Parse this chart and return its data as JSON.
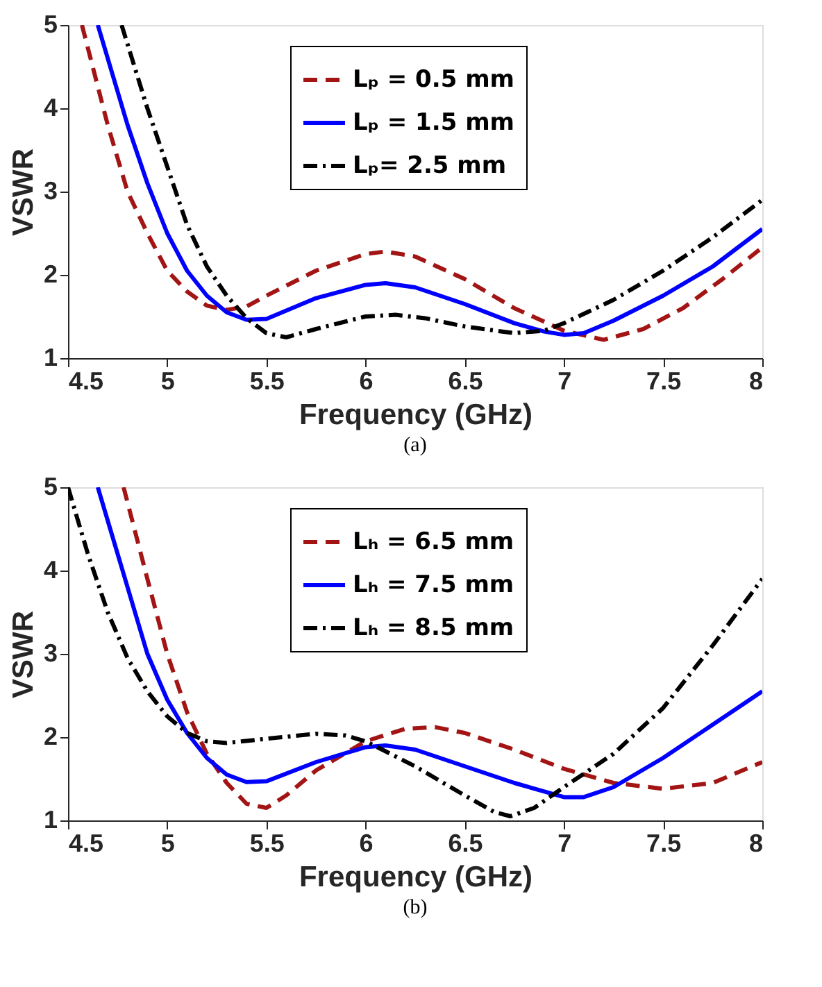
{
  "chart_data": [
    {
      "type": "line",
      "xlabel": "Frequency (GHz)",
      "ylabel": "VSWR",
      "annotations": [
        "(a)"
      ],
      "xlim": [
        4.5,
        8
      ],
      "xticks": [
        4.5,
        5,
        5.5,
        6,
        6.5,
        7,
        7.5,
        8
      ],
      "ylim": [
        1,
        5
      ],
      "yticks": [
        1,
        2,
        3,
        4,
        5
      ],
      "grid": false,
      "legend": "top",
      "marker": "none",
      "series": [
        {
          "name": "Lₚ = 0.5 mm",
          "color": "#a31515",
          "line_style": "dashed",
          "x": [
            4.57,
            4.7,
            4.8,
            4.9,
            5.0,
            5.1,
            5.2,
            5.3,
            5.4,
            5.5,
            5.75,
            6.0,
            6.1,
            6.25,
            6.5,
            6.75,
            7.0,
            7.2,
            7.4,
            7.6,
            7.8,
            8.0
          ],
          "values": [
            5,
            3.8,
            3.0,
            2.5,
            2.05,
            1.8,
            1.63,
            1.58,
            1.62,
            1.75,
            2.05,
            2.25,
            2.28,
            2.22,
            1.95,
            1.6,
            1.33,
            1.22,
            1.35,
            1.6,
            1.95,
            2.33
          ]
        },
        {
          "name": "Lₚ = 1.5 mm",
          "color": "#0000ff",
          "line_style": "solid",
          "x": [
            4.65,
            4.8,
            4.9,
            5.0,
            5.1,
            5.2,
            5.3,
            5.4,
            5.5,
            5.75,
            6.0,
            6.1,
            6.25,
            6.5,
            6.75,
            6.9,
            7.0,
            7.1,
            7.25,
            7.5,
            7.75,
            8.0
          ],
          "values": [
            5,
            3.8,
            3.1,
            2.5,
            2.05,
            1.75,
            1.55,
            1.46,
            1.47,
            1.72,
            1.88,
            1.9,
            1.85,
            1.65,
            1.42,
            1.32,
            1.28,
            1.3,
            1.45,
            1.75,
            2.1,
            2.55
          ]
        },
        {
          "name": "Lₚ= 2.5 mm",
          "color": "#000000",
          "line_style": "dashdot",
          "x": [
            4.77,
            4.9,
            5.0,
            5.1,
            5.2,
            5.3,
            5.4,
            5.5,
            5.6,
            5.75,
            6.0,
            6.15,
            6.3,
            6.5,
            6.75,
            6.9,
            7.0,
            7.25,
            7.5,
            7.75,
            8.0
          ],
          "values": [
            5,
            4.0,
            3.3,
            2.6,
            2.1,
            1.75,
            1.48,
            1.3,
            1.25,
            1.35,
            1.5,
            1.52,
            1.48,
            1.38,
            1.3,
            1.33,
            1.42,
            1.7,
            2.05,
            2.45,
            2.9
          ]
        }
      ]
    },
    {
      "type": "line",
      "xlabel": "Frequency (GHz)",
      "ylabel": "VSWR",
      "annotations": [
        "(b)"
      ],
      "xlim": [
        4.5,
        8
      ],
      "xticks": [
        4.5,
        5,
        5.5,
        6,
        6.5,
        7,
        7.5,
        8
      ],
      "ylim": [
        1,
        5
      ],
      "yticks": [
        1,
        2,
        3,
        4,
        5
      ],
      "grid": false,
      "legend": "top",
      "marker": "none",
      "series": [
        {
          "name": "Lₕ = 6.5 mm",
          "color": "#a31515",
          "line_style": "dashed",
          "x": [
            4.78,
            4.9,
            5.0,
            5.1,
            5.2,
            5.3,
            5.4,
            5.5,
            5.6,
            5.75,
            6.0,
            6.2,
            6.35,
            6.5,
            6.75,
            7.0,
            7.25,
            7.5,
            7.75,
            8.0
          ],
          "values": [
            5,
            3.9,
            3.0,
            2.3,
            1.8,
            1.45,
            1.2,
            1.15,
            1.3,
            1.6,
            1.95,
            2.1,
            2.12,
            2.05,
            1.85,
            1.62,
            1.45,
            1.38,
            1.45,
            1.7
          ]
        },
        {
          "name": "Lₕ = 7.5 mm",
          "color": "#0000ff",
          "line_style": "solid",
          "x": [
            4.65,
            4.8,
            4.9,
            5.0,
            5.1,
            5.2,
            5.3,
            5.4,
            5.5,
            5.75,
            6.0,
            6.1,
            6.25,
            6.5,
            6.75,
            7.0,
            7.1,
            7.25,
            7.5,
            7.75,
            8.0
          ],
          "values": [
            5,
            3.8,
            3.0,
            2.45,
            2.05,
            1.75,
            1.55,
            1.46,
            1.47,
            1.7,
            1.88,
            1.9,
            1.85,
            1.65,
            1.45,
            1.28,
            1.28,
            1.4,
            1.75,
            2.15,
            2.55
          ]
        },
        {
          "name": "Lₕ = 8.5 mm",
          "color": "#000000",
          "line_style": "dashdot",
          "x": [
            4.5,
            4.6,
            4.7,
            4.8,
            4.9,
            5.0,
            5.1,
            5.2,
            5.3,
            5.5,
            5.75,
            5.9,
            6.0,
            6.25,
            6.5,
            6.65,
            6.73,
            6.85,
            7.0,
            7.25,
            7.5,
            7.75,
            8.0
          ],
          "values": [
            5,
            4.2,
            3.5,
            2.95,
            2.55,
            2.25,
            2.05,
            1.95,
            1.93,
            1.98,
            2.04,
            2.02,
            1.95,
            1.65,
            1.3,
            1.1,
            1.05,
            1.15,
            1.4,
            1.8,
            2.35,
            3.1,
            3.9
          ]
        }
      ]
    }
  ]
}
